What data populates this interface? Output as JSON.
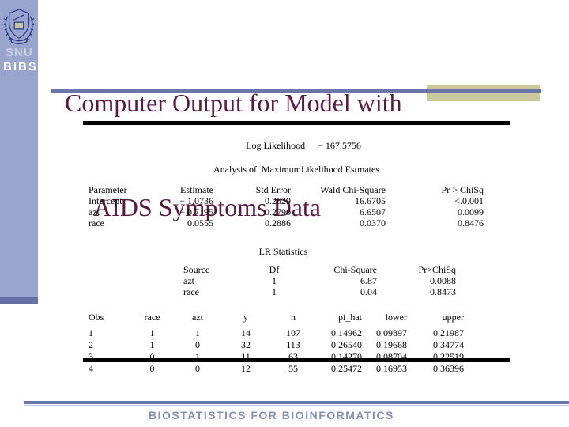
{
  "colors": {
    "sidebar": "#9aa5cd",
    "sidebar_strip": "#6671a3",
    "title_text": "#5a1843",
    "rule_slate": "#6b76a8",
    "tan_block": "#cbc99c",
    "footer_text": "#8591bb",
    "emblem_navy": "#2b3a8c",
    "table_rule": "#000000"
  },
  "icons": {
    "emblem": "snu-university-crest"
  },
  "sidebar": {
    "org": "SNU",
    "unit": "BIBS"
  },
  "title": {
    "line1": "Computer Output for Model with",
    "line2": "AIDS Symptoms Data"
  },
  "output": {
    "log_likelihood_label": "Log Likelihood",
    "log_likelihood_value": "− 167.5756",
    "analysis_heading": "Analysis of  MaximumLikelihood Estmates",
    "mle_table": {
      "headers": [
        "Parameter",
        "Estimate",
        "Std Error",
        "Wald Chi-Square",
        "Pr > ChiSq"
      ],
      "rows": [
        [
          "Intercept",
          "− 1.0736",
          "0.2629",
          "16.6705",
          "<.0.001"
        ],
        [
          "azt",
          "− 0.7195",
          "0.2790",
          "6.6507",
          "0.0099"
        ],
        [
          "race",
          "0.0555",
          "0.2886",
          "0.0370",
          "0.8476"
        ]
      ]
    },
    "lr_heading": "LR Statistics",
    "lr_table": {
      "headers": [
        "Source",
        "Df",
        "Chi-Square",
        "Pr>ChiSq"
      ],
      "rows": [
        [
          "azt",
          "1",
          "6.87",
          "0.0088"
        ],
        [
          "race",
          "1",
          "0.04",
          "0.8473"
        ]
      ]
    },
    "obs_table": {
      "headers": [
        "Obs",
        "race",
        "azt",
        "y",
        "n",
        "pi_hat",
        "lower",
        "upper"
      ],
      "rows": [
        [
          "1",
          "1",
          "1",
          "14",
          "107",
          "0.14962",
          "0.09897",
          "0.21987"
        ],
        [
          "2",
          "1",
          "0",
          "32",
          "113",
          "0.26540",
          "0.19668",
          "0.34774"
        ],
        [
          "3",
          "0",
          "1",
          "11",
          "63",
          "0.14270",
          "0.08704",
          "0.22519"
        ],
        [
          "4",
          "0",
          "0",
          "12",
          "55",
          "0.25472",
          "0.16953",
          "0.36396"
        ]
      ]
    }
  },
  "footer": {
    "text": "BIOSTATISTICS FOR BIOINFORMATICS"
  }
}
